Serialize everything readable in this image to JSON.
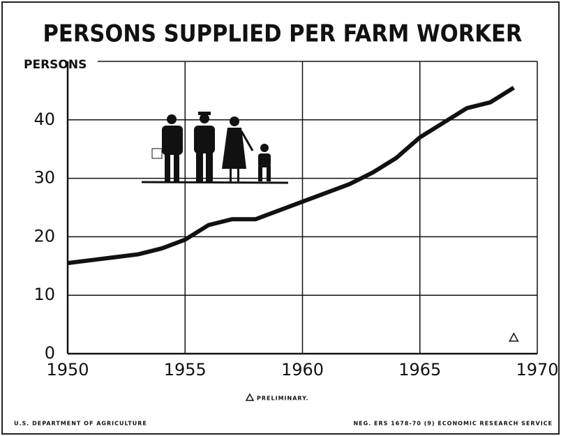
{
  "chart_data": {
    "type": "line",
    "title": "PERSONS SUPPLIED PER FARM WORKER",
    "y_label": "PERSONS",
    "x": [
      1950,
      1951,
      1952,
      1953,
      1954,
      1955,
      1956,
      1957,
      1958,
      1959,
      1960,
      1961,
      1962,
      1963,
      1964,
      1965,
      1966,
      1967,
      1968,
      1969
    ],
    "values": [
      15.5,
      16,
      16.5,
      17,
      18,
      19.5,
      22,
      23,
      23,
      24.5,
      26,
      27.5,
      29,
      31,
      33.5,
      37,
      39.5,
      42,
      43,
      45.5
    ],
    "color": "#111111",
    "xlim": [
      1950,
      1970
    ],
    "xticks": [
      1950,
      1955,
      1960,
      1965,
      1970
    ],
    "ylim": [
      0,
      50
    ],
    "yticks": [
      0,
      10,
      20,
      30,
      40
    ],
    "grid": true,
    "note": "PRELIMINARY.",
    "source_left": "U.S. DEPARTMENT OF AGRICULTURE",
    "source_right": "NEG. ERS 1678-70 (9)   ECONOMIC RESEARCH SERVICE"
  }
}
